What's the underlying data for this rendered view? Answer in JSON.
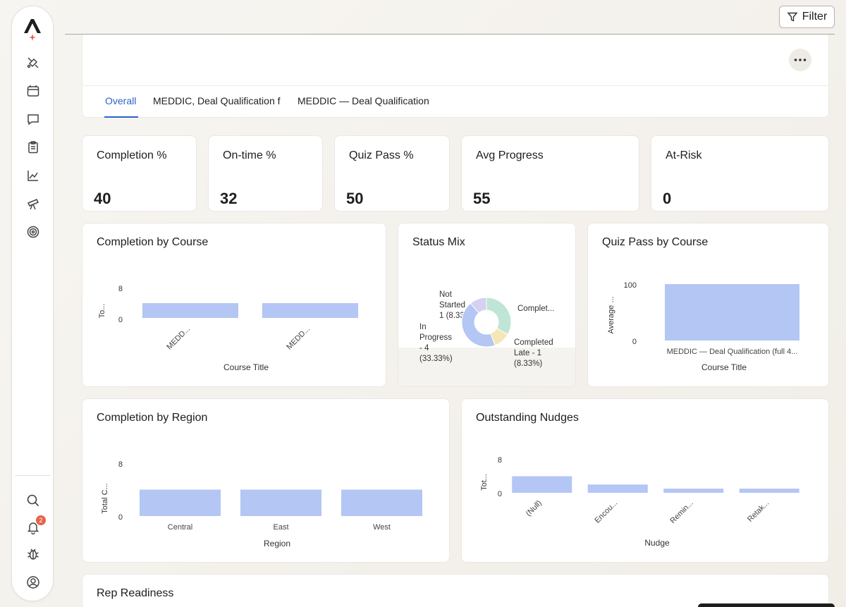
{
  "sidebar": {
    "items": [
      {
        "icon": "pen-tool-icon"
      },
      {
        "icon": "calendar-icon"
      },
      {
        "icon": "chat-icon"
      },
      {
        "icon": "clipboard-icon"
      },
      {
        "icon": "line-chart-icon"
      },
      {
        "icon": "telescope-icon"
      },
      {
        "icon": "target-icon"
      }
    ],
    "bottom": [
      {
        "icon": "search-icon"
      },
      {
        "icon": "bell-icon",
        "badge": "2"
      },
      {
        "icon": "bug-icon"
      },
      {
        "icon": "user-circle-icon"
      }
    ]
  },
  "toolbar": {
    "filter_label": "Filter"
  },
  "tabs": [
    {
      "label": "Overall",
      "active": true
    },
    {
      "label": "MEDDIC, Deal Qualification f"
    },
    {
      "label": "MEDDIC — Deal Qualification"
    }
  ],
  "kpis": [
    {
      "title": "Completion %",
      "value": "40"
    },
    {
      "title": "On-time %",
      "value": "32"
    },
    {
      "title": "Quiz Pass %",
      "value": "50"
    },
    {
      "title": "Avg Progress",
      "value": "55"
    },
    {
      "title": "At-Risk",
      "value": "0"
    }
  ],
  "colors": {
    "bar": "#b3c6f4",
    "accent": "#2d63c8",
    "badge": "#e8624a"
  },
  "chart_data": [
    {
      "type": "bar",
      "title": "Completion by Course",
      "xlabel": "Course Title",
      "ylabel": "To...",
      "yticks": [
        "8",
        "0"
      ],
      "categories": [
        "MEDD...",
        "MEDD..."
      ],
      "values": [
        4,
        4
      ],
      "ylim": [
        0,
        8
      ]
    },
    {
      "type": "pie",
      "title": "Status Mix",
      "slices": [
        {
          "label": "Complet...",
          "value": 25,
          "color": "#bfe5d6"
        },
        {
          "label": "Completed Late - 1 (8.33%)",
          "value": 8.33,
          "color": "#f5e7b5"
        },
        {
          "label": "In Progress - 4 (33.33%)",
          "value": 33.33,
          "color": "#b3c6f4"
        },
        {
          "label": "Not Started - 1 (8.33%)",
          "value": 8.33,
          "color": "#d6d0f2"
        }
      ],
      "labels_text": {
        "completed": "Complet...",
        "completed_late": [
          "Completed",
          "Late - 1",
          "(8.33%)"
        ],
        "in_progress": [
          "In",
          "Progress",
          "- 4",
          "(33.33%)"
        ],
        "not_started": [
          "Not",
          "Started -",
          "1 (8.33%)"
        ]
      }
    },
    {
      "type": "bar",
      "title": "Quiz Pass by Course",
      "xlabel": "Course Title",
      "ylabel": "Average ...",
      "yticks": [
        "100",
        "0"
      ],
      "categories": [
        "MEDDIC — Deal Qualification (full 4..."
      ],
      "values": [
        100
      ],
      "ylim": [
        0,
        100
      ]
    },
    {
      "type": "bar",
      "title": "Completion by Region",
      "xlabel": "Region",
      "ylabel": "Total C...",
      "yticks": [
        "8",
        "0"
      ],
      "categories": [
        "Central",
        "East",
        "West"
      ],
      "values": [
        4,
        4,
        4
      ],
      "ylim": [
        0,
        8
      ]
    },
    {
      "type": "bar",
      "title": "Outstanding Nudges",
      "xlabel": "Nudge",
      "ylabel": "Tot...",
      "yticks": [
        "8",
        "0"
      ],
      "categories": [
        "(Null)",
        "Encou...",
        "Remin...",
        "Retak..."
      ],
      "values": [
        4,
        2,
        1,
        1
      ],
      "ylim": [
        0,
        8
      ]
    }
  ],
  "rep_readiness": {
    "title": "Rep Readiness"
  }
}
